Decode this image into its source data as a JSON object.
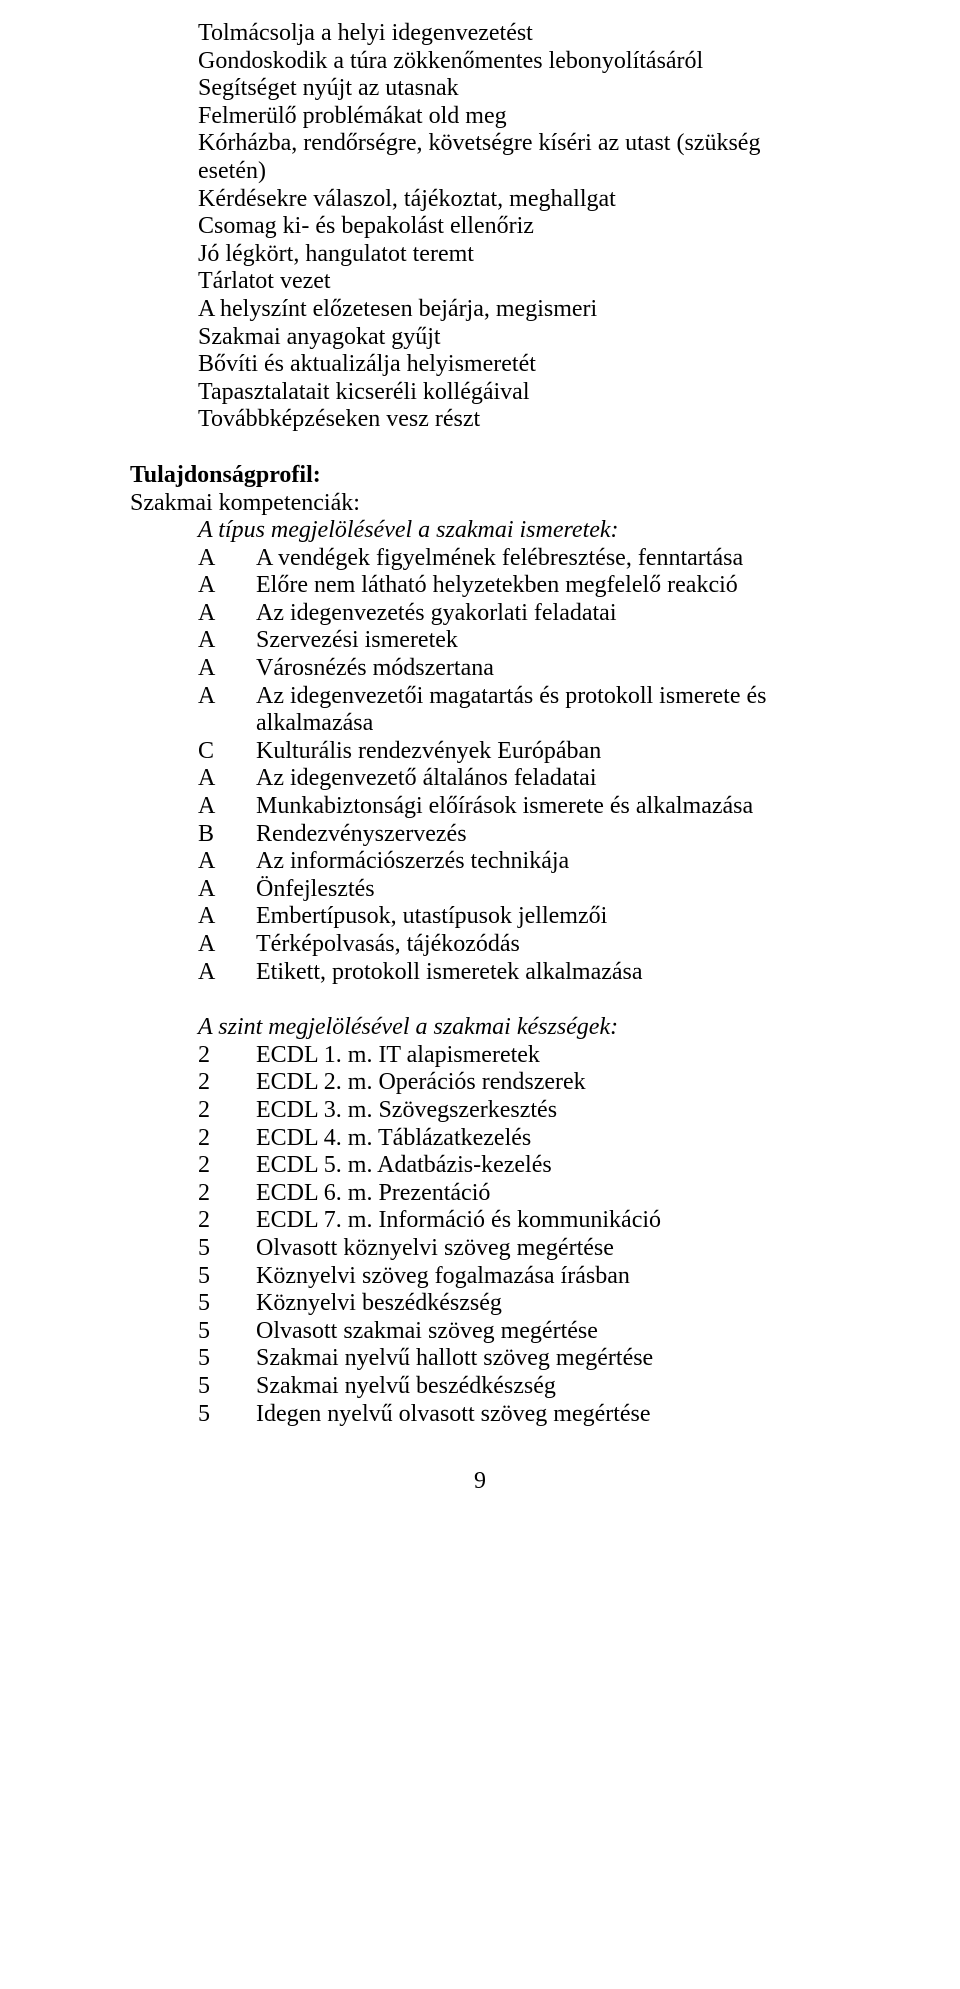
{
  "bulletList": [
    "Tolmácsolja a helyi idegenvezetést",
    "Gondoskodik a túra zökkenőmentes lebonyolításáról",
    "Segítséget nyújt az utasnak",
    "Felmerülő problémákat old meg",
    "Kórházba, rendőrségre, követségre kíséri az utast (szükség esetén)",
    "Kérdésekre válaszol, tájékoztat, meghallgat",
    "Csomag ki- és bepakolást ellenőriz",
    "Jó légkört, hangulatot teremt",
    "Tárlatot vezet",
    "A helyszínt előzetesen bejárja, megismeri",
    "Szakmai anyagokat gyűjt",
    "Bővíti és aktualizálja helyismeretét",
    "Tapasztalatait kicseréli kollégáival",
    "Továbbképzéseken vesz részt"
  ],
  "profileHeading": "Tulajdonságprofil:",
  "competenciesLine": "Szakmai kompetenciák:",
  "knowledgeIntro": "A típus megjelölésével a szakmai ismeretek:",
  "knowledgeRows": [
    {
      "label": "A",
      "text": "A vendégek figyelmének felébresztése, fenntartása"
    },
    {
      "label": "A",
      "text": "Előre nem látható helyzetekben megfelelő reakció"
    },
    {
      "label": "A",
      "text": "Az idegenvezetés gyakorlati feladatai"
    },
    {
      "label": "A",
      "text": "Szervezési ismeretek"
    },
    {
      "label": "A",
      "text": "Városnézés módszertana"
    },
    {
      "label": "A",
      "text": "Az idegenvezetői magatartás és protokoll ismerete és alkalmazása"
    },
    {
      "label": "C",
      "text": "Kulturális rendezvények Európában"
    },
    {
      "label": "A",
      "text": "Az idegenvezető általános feladatai"
    },
    {
      "label": "A",
      "text": "Munkabiztonsági előírások ismerete és alkalmazása"
    },
    {
      "label": "B",
      "text": "Rendezvényszervezés"
    },
    {
      "label": "A",
      "text": "Az információszerzés technikája"
    },
    {
      "label": "A",
      "text": "Önfejlesztés"
    },
    {
      "label": "A",
      "text": "Embertípusok, utastípusok jellemzői"
    },
    {
      "label": "A",
      "text": "Térképolvasás, tájékozódás"
    },
    {
      "label": "A",
      "text": "Etikett, protokoll ismeretek alkalmazása"
    }
  ],
  "skillsIntro": "A szint megjelölésével a szakmai készségek:",
  "skillRows": [
    {
      "label": "2",
      "text": "ECDL 1. m. IT alapismeretek"
    },
    {
      "label": "2",
      "text": "ECDL 2. m. Operációs rendszerek"
    },
    {
      "label": "2",
      "text": "ECDL 3. m. Szövegszerkesztés"
    },
    {
      "label": "2",
      "text": "ECDL 4. m. Táblázatkezelés"
    },
    {
      "label": "2",
      "text": "ECDL 5. m. Adatbázis-kezelés"
    },
    {
      "label": "2",
      "text": "ECDL 6. m. Prezentáció"
    },
    {
      "label": "2",
      "text": "ECDL 7. m. Információ és kommunikáció"
    },
    {
      "label": "5",
      "text": "Olvasott köznyelvi szöveg megértése"
    },
    {
      "label": "5",
      "text": "Köznyelvi szöveg fogalmazása írásban"
    },
    {
      "label": "5",
      "text": "Köznyelvi beszédkészség"
    },
    {
      "label": "5",
      "text": "Olvasott szakmai szöveg megértése"
    },
    {
      "label": "5",
      "text": "Szakmai nyelvű hallott szöveg megértése"
    },
    {
      "label": "5",
      "text": "Szakmai nyelvű beszédkészség"
    },
    {
      "label": "5",
      "text": "Idegen nyelvű olvasott szöveg megértése"
    }
  ],
  "pageNumber": "9"
}
